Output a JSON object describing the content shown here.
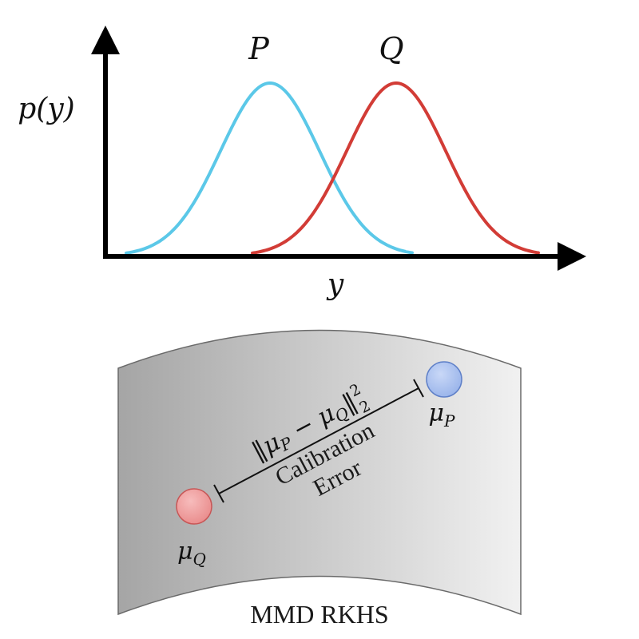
{
  "plot": {
    "y_axis_label": "p(y)",
    "x_axis_label": "y",
    "curves": [
      {
        "label": "P",
        "color": "#5bc8e8"
      },
      {
        "label": "Q",
        "color": "#d23c36"
      }
    ]
  },
  "embedding": {
    "space_label": "MMD RKHS",
    "surface_colors": {
      "dark": "#a5a5a5",
      "light": "#f1f1f1"
    },
    "point_q": {
      "symbol": "μ",
      "subscript": "Q",
      "fill": "#e98b8b",
      "stroke": "#c75656"
    },
    "point_p": {
      "symbol": "μ",
      "subscript": "P",
      "fill": "#98b3ea",
      "stroke": "#5f80c8"
    },
    "distance": {
      "norm_open": "‖",
      "mu": "μ",
      "sub_p": "P",
      "minus": " − ",
      "sub_q": "Q",
      "norm_close": "‖",
      "exponent": "2",
      "lower_index": "2"
    },
    "caption_line1": "Calibration",
    "caption_line2": "Error"
  }
}
